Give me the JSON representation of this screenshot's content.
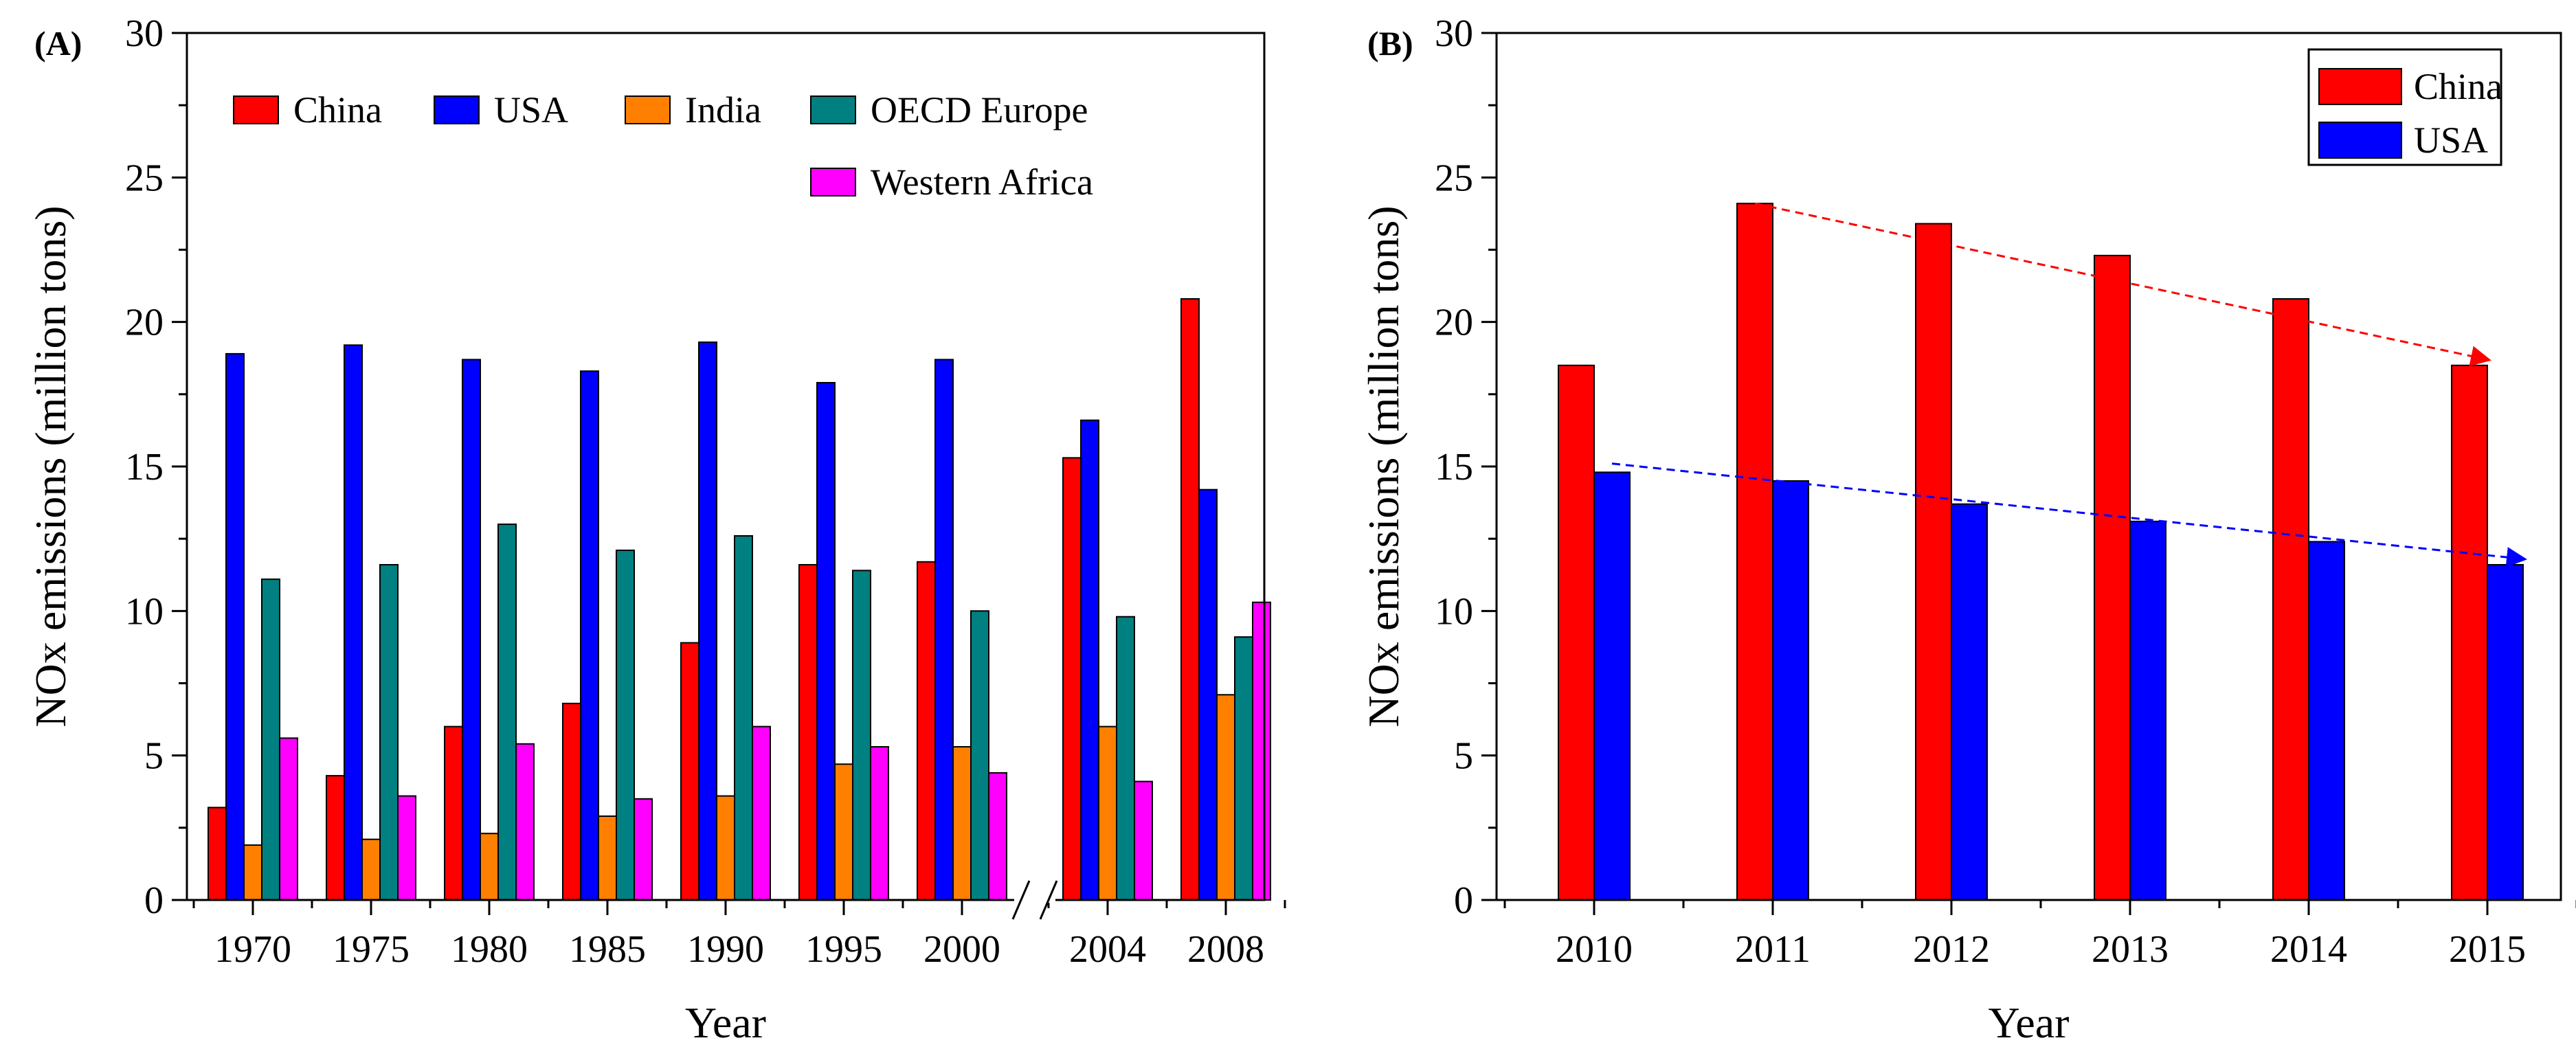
{
  "chart_data": [
    {
      "panel_label": "(A)",
      "type": "bar",
      "xlabel": "Year",
      "ylabel": "NOx emissions (million tons)",
      "ylim": [
        0,
        30
      ],
      "yticks": [
        "0",
        "5",
        "10",
        "15",
        "20",
        "25",
        "30"
      ],
      "axis_break": "between 2000 and 2004",
      "legend_placement": "top",
      "categories": [
        "1970",
        "1975",
        "1980",
        "1985",
        "1990",
        "1995",
        "2000",
        "2004",
        "2008"
      ],
      "series": [
        {
          "name": "China",
          "color": "#ff0000",
          "values": [
            3.2,
            4.3,
            6.0,
            6.8,
            8.9,
            11.6,
            11.7,
            15.3,
            20.8
          ]
        },
        {
          "name": "USA",
          "color": "#0000ff",
          "values": [
            18.9,
            19.2,
            18.7,
            18.3,
            19.3,
            17.9,
            18.7,
            16.6,
            14.2
          ]
        },
        {
          "name": "India",
          "color": "#ff8000",
          "values": [
            1.9,
            2.1,
            2.3,
            2.9,
            3.6,
            4.7,
            5.3,
            6.0,
            7.1
          ]
        },
        {
          "name": "OECD Europe",
          "color": "#008080",
          "values": [
            11.1,
            11.6,
            13.0,
            12.1,
            12.6,
            11.4,
            10.0,
            9.8,
            9.1
          ]
        },
        {
          "name": "Western Africa",
          "color": "#ff00ff",
          "values": [
            5.6,
            3.6,
            5.4,
            3.5,
            6.0,
            5.3,
            4.4,
            4.1,
            10.3
          ]
        }
      ]
    },
    {
      "panel_label": "(B)",
      "type": "bar",
      "xlabel": "Year",
      "ylabel": "NOx emissions (million tons)",
      "ylim": [
        0,
        30
      ],
      "yticks": [
        "0",
        "5",
        "10",
        "15",
        "20",
        "25",
        "30"
      ],
      "legend_placement": "top-right",
      "categories": [
        "2010",
        "2011",
        "2012",
        "2013",
        "2014",
        "2015"
      ],
      "series": [
        {
          "name": "China",
          "color": "#ff0000",
          "values": [
            18.5,
            24.1,
            23.4,
            22.3,
            20.8,
            18.5
          ]
        },
        {
          "name": "USA",
          "color": "#0000ff",
          "values": [
            14.8,
            14.5,
            13.7,
            13.1,
            12.4,
            11.6
          ]
        }
      ],
      "trend_arrows": [
        {
          "series": "China",
          "color": "#ff0000",
          "from": {
            "x": "2011",
            "y": 24.1
          },
          "to": {
            "x": "2015",
            "y": 18.7
          }
        },
        {
          "series": "USA",
          "color": "#0000ff",
          "from": {
            "x": "2010",
            "y": 15.1
          },
          "to": {
            "x": "2015",
            "y": 11.8
          }
        }
      ]
    }
  ]
}
